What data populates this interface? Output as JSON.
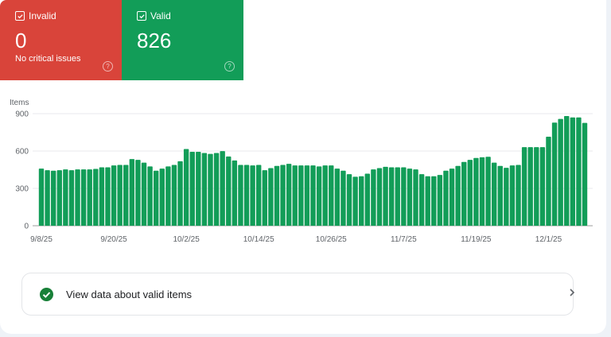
{
  "cards": {
    "invalid": {
      "label": "Invalid",
      "value": "0",
      "subtitle": "No critical issues",
      "color": "#d9443a",
      "help_icon": "help-circle-icon"
    },
    "valid": {
      "label": "Valid",
      "value": "826",
      "color": "#129d58",
      "help_icon": "help-circle-icon"
    }
  },
  "chart_data": {
    "type": "bar",
    "ylabel": "Items",
    "ylim": [
      0,
      900
    ],
    "yticks": [
      0,
      300,
      600,
      900
    ],
    "grid": true,
    "bar_color": "#129d58",
    "x_start": "9/8/25",
    "x_end": "12/7/25",
    "xtick_labels": [
      "9/8/25",
      "9/20/25",
      "10/2/25",
      "10/14/25",
      "10/26/25",
      "11/7/25",
      "11/19/25",
      "12/1/25"
    ],
    "values": [
      459,
      446,
      442,
      446,
      452,
      446,
      452,
      452,
      452,
      456,
      469,
      469,
      484,
      488,
      488,
      535,
      529,
      507,
      476,
      442,
      459,
      476,
      488,
      518,
      616,
      594,
      594,
      584,
      577,
      584,
      599,
      556,
      524,
      488,
      488,
      484,
      488,
      446,
      463,
      480,
      488,
      497,
      484,
      484,
      484,
      484,
      476,
      484,
      484,
      459,
      442,
      414,
      393,
      397,
      418,
      452,
      463,
      473,
      469,
      469,
      469,
      459,
      452,
      414,
      397,
      397,
      408,
      442,
      459,
      480,
      512,
      529,
      544,
      550,
      554,
      507,
      480,
      465,
      484,
      488,
      631,
      631,
      631,
      631,
      715,
      828,
      858,
      881,
      870,
      870,
      826
    ]
  },
  "details_row": {
    "label": "View data about valid items",
    "icon": "check-circle-icon",
    "chevron": "chevron-right-icon"
  }
}
